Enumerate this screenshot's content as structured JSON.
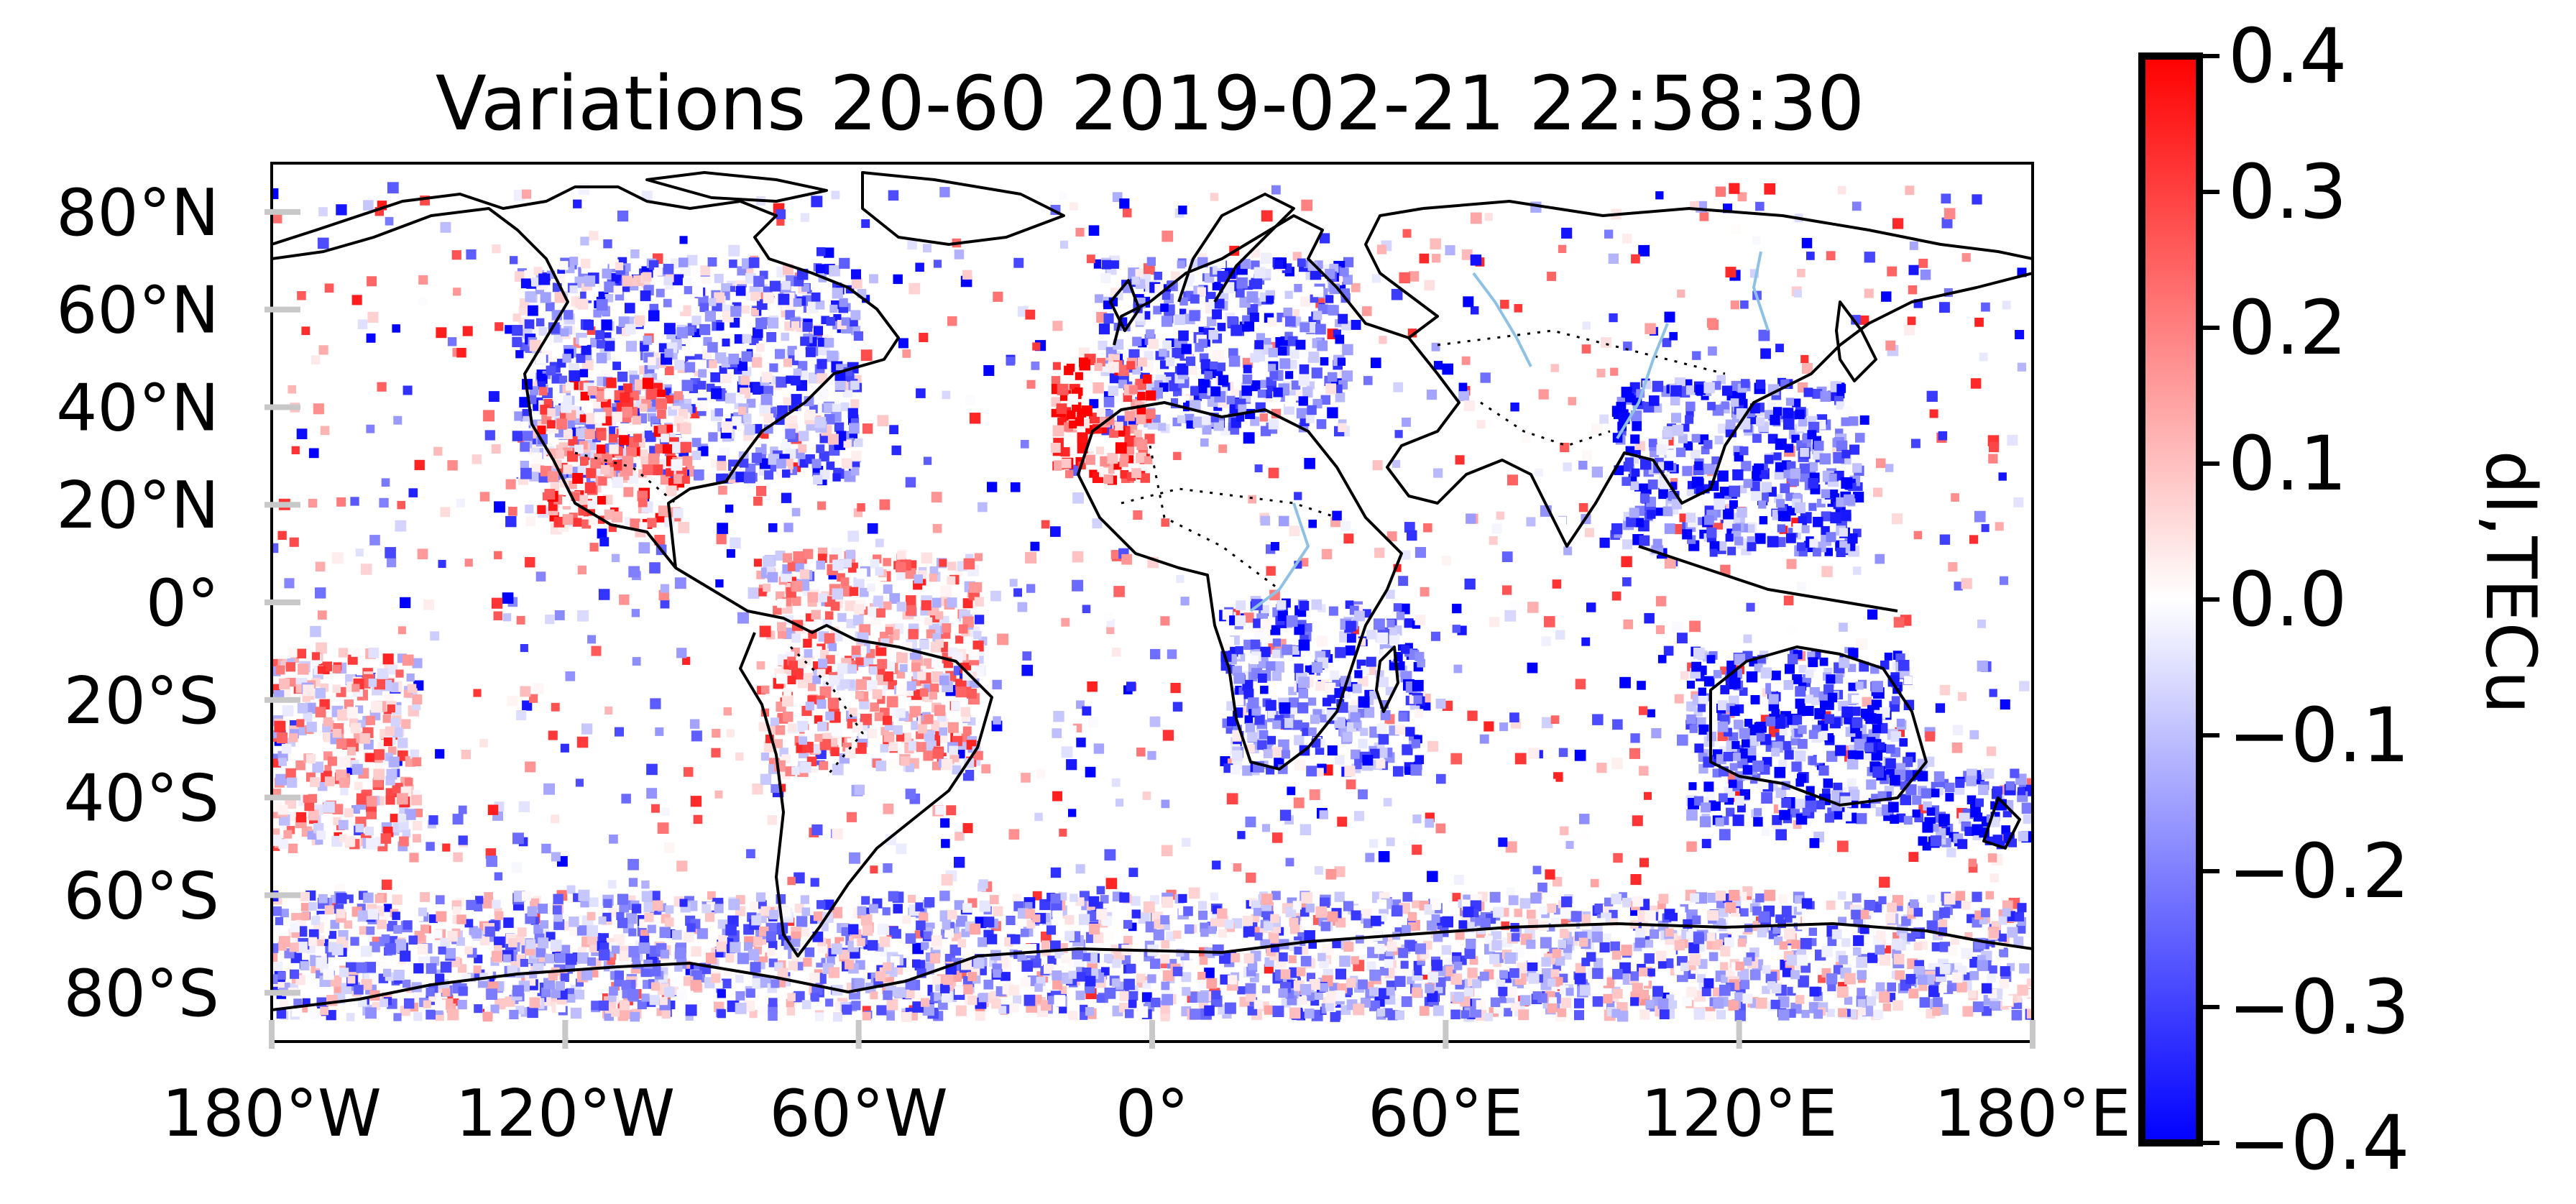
{
  "title": "Variations 20-60 2019-02-21 22:58:30",
  "map": {
    "longitude_range": [
      -180,
      180
    ],
    "latitude_range": [
      -90,
      90
    ],
    "longitude_ticks": [
      {
        "value": -180,
        "label": "180°W"
      },
      {
        "value": -120,
        "label": "120°W"
      },
      {
        "value": -60,
        "label": "60°W"
      },
      {
        "value": 0,
        "label": "0°"
      },
      {
        "value": 60,
        "label": "60°E"
      },
      {
        "value": 120,
        "label": "120°E"
      },
      {
        "value": 180,
        "label": "180°E"
      }
    ],
    "latitude_ticks": [
      {
        "value": 80,
        "label": "80°N"
      },
      {
        "value": 60,
        "label": "60°N"
      },
      {
        "value": 40,
        "label": "40°N"
      },
      {
        "value": 20,
        "label": "20°N"
      },
      {
        "value": 0,
        "label": "0°"
      },
      {
        "value": -20,
        "label": "20°S"
      },
      {
        "value": -40,
        "label": "40°S"
      },
      {
        "value": -60,
        "label": "60°S"
      },
      {
        "value": -80,
        "label": "80°S"
      }
    ],
    "coastline_color": "#000000",
    "border_style": "dotted",
    "river_color": "#8ec1e3"
  },
  "colorbar": {
    "label": "dI,TECu",
    "range": [
      -0.4,
      0.4
    ],
    "ticks": [
      {
        "value": 0.4,
        "label": "0.4"
      },
      {
        "value": 0.3,
        "label": "0.3"
      },
      {
        "value": 0.2,
        "label": "0.2"
      },
      {
        "value": 0.1,
        "label": "0.1"
      },
      {
        "value": 0.0,
        "label": "0.0"
      },
      {
        "value": -0.1,
        "label": "−0.1"
      },
      {
        "value": -0.2,
        "label": "−0.2"
      },
      {
        "value": -0.3,
        "label": "−0.3"
      },
      {
        "value": -0.4,
        "label": "−0.4"
      }
    ],
    "colors": {
      "low": "#0000ff",
      "mid": "#ffffff",
      "high": "#ff0000"
    }
  },
  "chart_data": {
    "type": "scatter",
    "title": "Variations 20-60 2019-02-21 22:58:30",
    "x_axis": "longitude",
    "y_axis": "latitude",
    "xlim": [
      -180,
      180
    ],
    "ylim": [
      -90,
      90
    ],
    "color_value_label": "dI,TECu",
    "color_range": [
      -0.4,
      0.4
    ],
    "colormap": "bwr",
    "legend": "colorbar right",
    "regions": [
      {
        "lon": [
          -130,
          -60
        ],
        "lat": [
          25,
          70
        ],
        "dominant_value": -0.15
      },
      {
        "lon": [
          -125,
          -95
        ],
        "lat": [
          15,
          45
        ],
        "dominant_value": 0.2
      },
      {
        "lon": [
          -80,
          -35
        ],
        "lat": [
          -35,
          10
        ],
        "dominant_value": 0.1
      },
      {
        "lon": [
          -10,
          40
        ],
        "lat": [
          35,
          70
        ],
        "dominant_value": -0.2
      },
      {
        "lon": [
          -20,
          0
        ],
        "lat": [
          25,
          50
        ],
        "dominant_value": 0.25
      },
      {
        "lon": [
          95,
          145
        ],
        "lat": [
          10,
          45
        ],
        "dominant_value": -0.25
      },
      {
        "lon": [
          110,
          155
        ],
        "lat": [
          -45,
          -10
        ],
        "dominant_value": -0.25
      },
      {
        "lon": [
          155,
          180
        ],
        "lat": [
          -50,
          -35
        ],
        "dominant_value": -0.3
      },
      {
        "lon": [
          -180,
          180
        ],
        "lat": [
          -85,
          -60
        ],
        "dominant_value": -0.1
      },
      {
        "lon": [
          15,
          55
        ],
        "lat": [
          -35,
          0
        ],
        "dominant_value": -0.2
      },
      {
        "lon": [
          -180,
          -150
        ],
        "lat": [
          -50,
          -10
        ],
        "dominant_value": 0.1
      }
    ]
  }
}
